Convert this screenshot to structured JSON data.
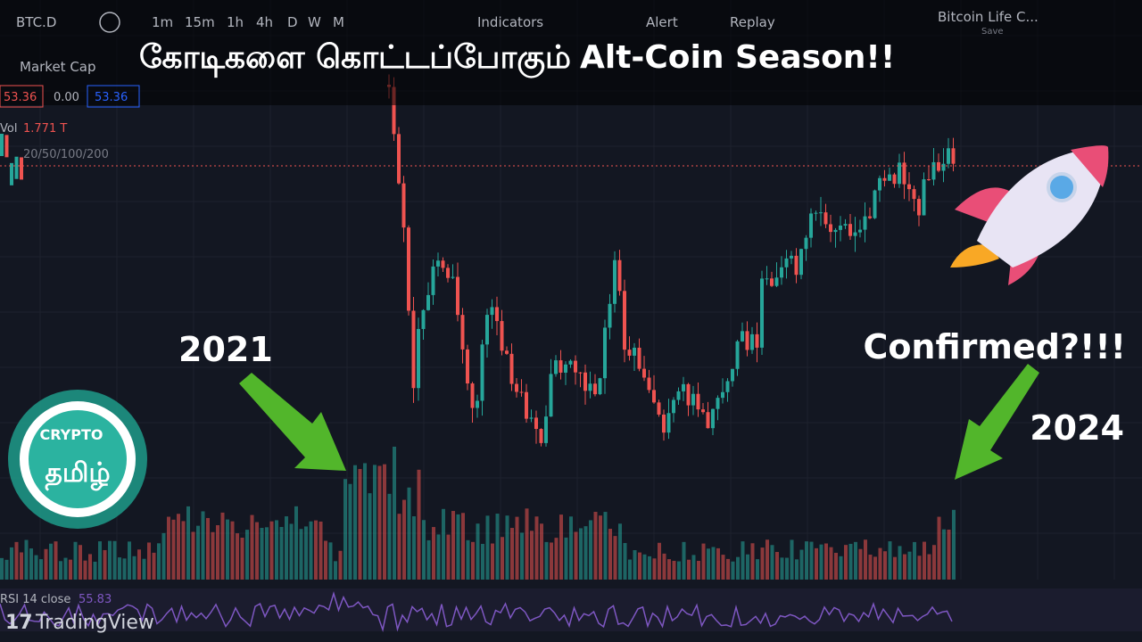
{
  "toolbar": {
    "symbol": "BTC.D",
    "intervals": [
      "1m",
      "15m",
      "1h",
      "4h",
      "D",
      "W",
      "M"
    ],
    "indicators": "Indicators",
    "alert": "Alert",
    "replay": "Replay",
    "layout_name": "Bitcoin Life C...",
    "save": "Save"
  },
  "legend": {
    "series_name": "Market Cap",
    "open": "53.36",
    "change": "0.00",
    "price": "53.36",
    "volume_label": "Vol",
    "volume_value": "1.771 T",
    "ma_label": "20/50/100/200"
  },
  "rsi": {
    "label": "RSI 14 close",
    "value": "55.83"
  },
  "brand": "TradingView",
  "headline": {
    "tamil": "கோடிகளை கொட்டப்போகும்",
    "english": "Alt-Coin Season!!"
  },
  "annotations": {
    "left_year": "2021",
    "question": "Confirmed?!!!",
    "right_year": "2024"
  },
  "logo": {
    "top": "CRYPTO",
    "bottom": "தமிழ்"
  }
}
